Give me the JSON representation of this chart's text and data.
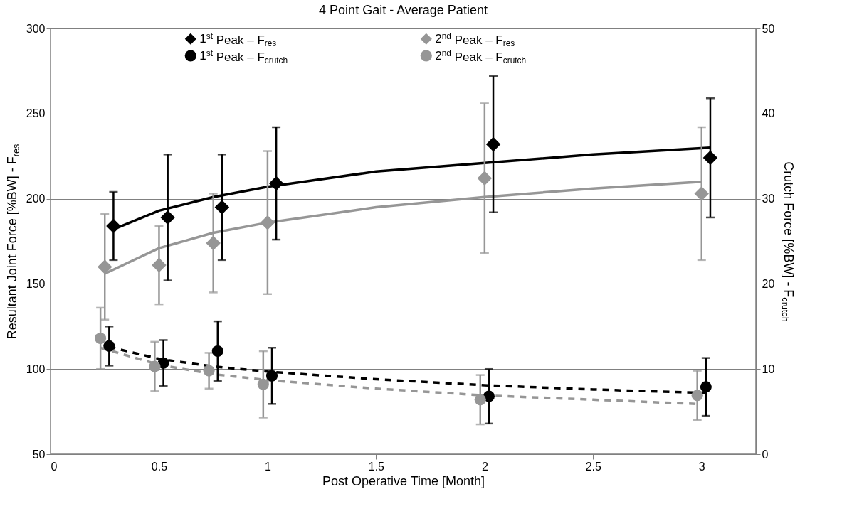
{
  "chart_data": {
    "type": "scatter",
    "title": "4 Point Gait - Average Patient",
    "xlabel": "Post Operative Time [Month]",
    "ylabel": "Resultant Joint Force [%BW] - F$_{res}$",
    "y2label": "Crutch Force [%BW] - F$_{crutch}$",
    "xlim": [
      0,
      3.25
    ],
    "xticks": [
      0,
      0.5,
      1,
      1.5,
      2,
      2.5,
      3
    ],
    "ylim": [
      50,
      300
    ],
    "yticks": [
      50,
      100,
      150,
      200,
      250,
      300
    ],
    "y2lim": [
      0,
      50
    ],
    "y2ticks": [
      0,
      10,
      20,
      30,
      40,
      50
    ],
    "grid": "y",
    "legend": "top",
    "series": [
      {
        "name": "1$^{st}$ Peak – F$_{res}$",
        "marker": "diamond",
        "color": "#000000",
        "x": [
          0.29,
          0.54,
          0.79,
          1.04,
          2.04,
          3.04
        ],
        "values": [
          184,
          189,
          195,
          209,
          232,
          224
        ],
        "errors": [
          20,
          37,
          31,
          33,
          40,
          35
        ]
      },
      {
        "name": "2$^{nd}$ Peak – F$_{res}$",
        "marker": "diamond",
        "color": "#969696",
        "x": [
          0.25,
          0.5,
          0.75,
          1.0,
          2.0,
          3.0
        ],
        "values": [
          160,
          161,
          174,
          186,
          212,
          203
        ],
        "errors": [
          31,
          23,
          29,
          42,
          44,
          39
        ]
      },
      {
        "name": "1$^{st}$ Peak – F$_{crutch}$",
        "marker": "circle",
        "color": "#000000",
        "axis": "y2",
        "x": [
          0.27,
          0.52,
          0.77,
          1.02,
          2.02,
          3.02
        ],
        "values": [
          12.7,
          10.7,
          12.1,
          9.2,
          6.8,
          7.9
        ],
        "errors": [
          2.3,
          2.7,
          3.5,
          3.3,
          3.2,
          3.4
        ]
      },
      {
        "name": "2$^{nd}$ Peak – F$_{crutch}$",
        "marker": "circle",
        "color": "#969696",
        "axis": "y2",
        "x": [
          0.23,
          0.48,
          0.73,
          0.98,
          1.98,
          2.98
        ],
        "values": [
          13.6,
          10.3,
          9.8,
          8.2,
          6.4,
          6.9
        ],
        "errors": [
          3.6,
          2.9,
          2.1,
          3.9,
          2.9,
          2.9
        ]
      },
      {
        "type": "line",
        "color": "#000000",
        "line_style": "solid",
        "x": [
          0.29,
          0.5,
          0.75,
          1,
          1.5,
          2,
          2.5,
          3.04
        ],
        "values": [
          182,
          193,
          201,
          207,
          216,
          221,
          226,
          230
        ]
      },
      {
        "type": "line",
        "color": "#969696",
        "line_style": "solid",
        "x": [
          0.25,
          0.5,
          0.75,
          1,
          1.5,
          2,
          2.5,
          3.0
        ],
        "values": [
          156,
          171,
          180,
          186,
          195,
          201,
          206,
          210
        ]
      },
      {
        "type": "line",
        "color": "#000000",
        "line_style": "dashed",
        "axis": "y2",
        "x": [
          0.27,
          0.5,
          0.75,
          1,
          1.5,
          2,
          2.5,
          3.02
        ],
        "values": [
          12.6,
          11.2,
          10.3,
          9.7,
          8.8,
          8.1,
          7.6,
          7.2
        ]
      },
      {
        "type": "line",
        "color": "#969696",
        "line_style": "dashed",
        "axis": "y2",
        "x": [
          0.23,
          0.5,
          0.75,
          1,
          1.5,
          2,
          2.5,
          2.98
        ],
        "values": [
          12.5,
          10.5,
          9.4,
          8.7,
          7.7,
          6.9,
          6.4,
          5.9
        ]
      }
    ]
  }
}
